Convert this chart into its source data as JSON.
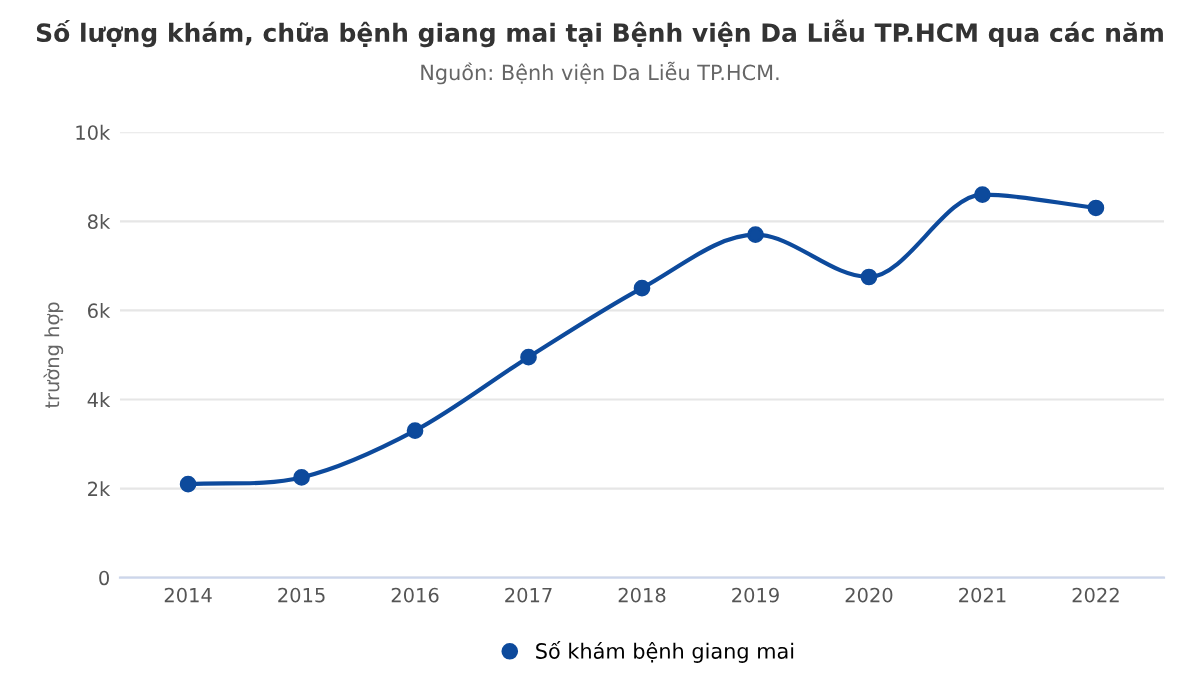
{
  "chart_data": {
    "type": "line",
    "title": "Số lượng khám, chữa bệnh giang mai tại Bệnh viện Da Liễu TP.HCM qua các năm",
    "subtitle": "Nguồn: Bệnh viện Da Liễu TP.HCM.",
    "ylabel": "trường hợp",
    "categories": [
      "2014",
      "2015",
      "2016",
      "2017",
      "2018",
      "2019",
      "2020",
      "2021",
      "2022"
    ],
    "series": [
      {
        "name": "Số khám bệnh giang mai",
        "color": "#0d4a9c",
        "values": [
          2100,
          2250,
          3300,
          4950,
          6500,
          7700,
          6750,
          8600,
          8300
        ]
      }
    ],
    "ylim": [
      0,
      10000
    ],
    "yticks": [
      {
        "value": 0,
        "label": "0"
      },
      {
        "value": 2000,
        "label": "2k"
      },
      {
        "value": 4000,
        "label": "4k"
      },
      {
        "value": 6000,
        "label": "6k"
      },
      {
        "value": 8000,
        "label": "8k"
      },
      {
        "value": 10000,
        "label": "10k"
      }
    ],
    "grid": "y",
    "legend": "bottom",
    "marker": "circle",
    "line_style": "solid"
  }
}
